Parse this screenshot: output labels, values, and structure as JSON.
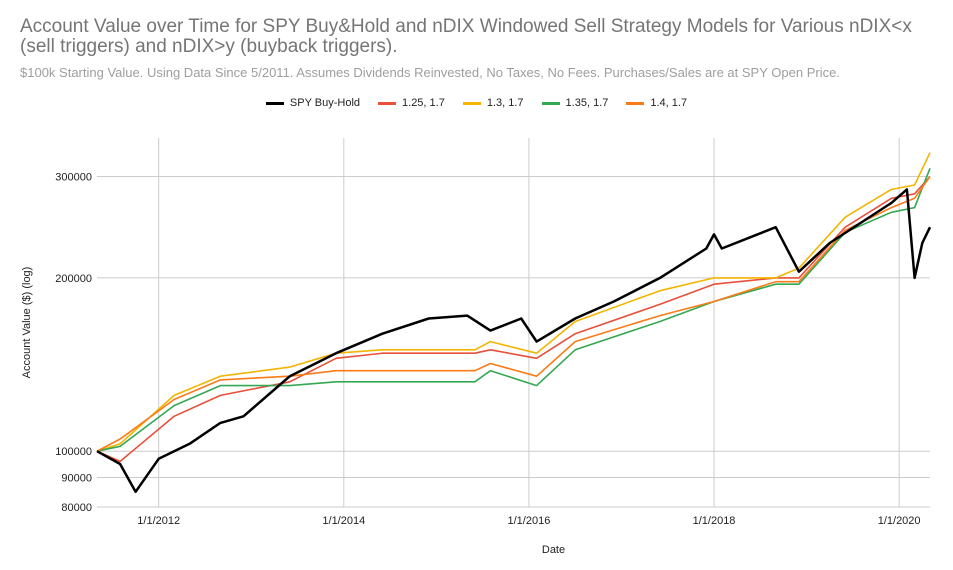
{
  "chart_data": {
    "type": "line",
    "title": "Account Value over Time for SPY Buy&Hold and nDIX Windowed Sell Strategy Models for Various nDIX<x (sell triggers) and nDIX>y (buyback triggers).",
    "subtitle": "$100k Starting Value. Using Data Since 5/2011. Assumes Dividends Reinvested, No Taxes, No Fees. Purchases/Sales are at SPY Open Price.",
    "xlabel": "Date",
    "ylabel": "Account Value ($) (log)",
    "y_scale": "log",
    "ylim": [
      80000,
      350000
    ],
    "xlim": [
      "2011-05",
      "2020-05"
    ],
    "x_ticks": [
      "1/1/2012",
      "1/1/2014",
      "1/1/2016",
      "1/1/2018",
      "1/1/2020"
    ],
    "y_ticks": [
      {
        "value": 80000,
        "label": "80000"
      },
      {
        "value": 90000,
        "label": "90000"
      },
      {
        "value": 100000,
        "label": "100000"
      },
      {
        "value": 200000,
        "label": "200000"
      },
      {
        "value": 300000,
        "label": "300000"
      }
    ],
    "legend_position": "top",
    "grid": true,
    "series": [
      {
        "name": "SPY Buy-Hold",
        "color": "#000000",
        "x": [
          "2011-05",
          "2011-08",
          "2011-10",
          "2012-01",
          "2012-05",
          "2012-09",
          "2012-12",
          "2013-06",
          "2013-12",
          "2014-06",
          "2014-12",
          "2015-05",
          "2015-08",
          "2015-12",
          "2016-02",
          "2016-07",
          "2016-12",
          "2017-06",
          "2017-12",
          "2018-01",
          "2018-02",
          "2018-09",
          "2018-12",
          "2019-04",
          "2019-12",
          "2020-02",
          "2020-03",
          "2020-04",
          "2020-05"
        ],
        "values": [
          100000,
          95000,
          85000,
          97000,
          103000,
          112000,
          115000,
          135000,
          148000,
          160000,
          170000,
          172000,
          162000,
          170000,
          155000,
          170000,
          182000,
          200000,
          225000,
          238000,
          225000,
          245000,
          205000,
          230000,
          270000,
          285000,
          200000,
          230000,
          245000
        ]
      },
      {
        "name": "1.25, 1.7",
        "color": "#e8503a",
        "x": [
          "2011-05",
          "2011-08",
          "2012-03",
          "2012-09",
          "2013-06",
          "2013-12",
          "2014-06",
          "2015-06",
          "2015-08",
          "2016-02",
          "2016-07",
          "2017-06",
          "2018-01",
          "2018-09",
          "2018-12",
          "2019-06",
          "2019-12",
          "2020-03",
          "2020-05"
        ],
        "values": [
          100000,
          96000,
          115000,
          125000,
          132000,
          145000,
          148000,
          148000,
          150000,
          145000,
          160000,
          180000,
          195000,
          200000,
          200000,
          245000,
          275000,
          280000,
          300000
        ]
      },
      {
        "name": "1.3, 1.7",
        "color": "#f4b400",
        "x": [
          "2011-05",
          "2011-08",
          "2012-03",
          "2012-09",
          "2013-06",
          "2013-12",
          "2014-06",
          "2015-06",
          "2015-08",
          "2016-02",
          "2016-07",
          "2017-06",
          "2018-01",
          "2018-09",
          "2018-12",
          "2019-06",
          "2019-12",
          "2020-03",
          "2020-05"
        ],
        "values": [
          100000,
          103000,
          125000,
          135000,
          140000,
          148000,
          150000,
          150000,
          155000,
          148000,
          168000,
          190000,
          200000,
          200000,
          208000,
          255000,
          285000,
          290000,
          330000
        ]
      },
      {
        "name": "1.35, 1.7",
        "color": "#34a853",
        "x": [
          "2011-05",
          "2011-08",
          "2012-03",
          "2012-09",
          "2013-06",
          "2013-12",
          "2014-06",
          "2015-06",
          "2015-08",
          "2016-02",
          "2016-07",
          "2017-06",
          "2018-01",
          "2018-09",
          "2018-12",
          "2019-06",
          "2019-12",
          "2020-03",
          "2020-05"
        ],
        "values": [
          100000,
          102000,
          120000,
          130000,
          130000,
          132000,
          132000,
          132000,
          138000,
          130000,
          150000,
          168000,
          182000,
          195000,
          195000,
          240000,
          260000,
          265000,
          310000
        ]
      },
      {
        "name": "1.4, 1.7",
        "color": "#fa7b17",
        "x": [
          "2011-05",
          "2011-08",
          "2012-03",
          "2012-09",
          "2013-06",
          "2013-12",
          "2014-06",
          "2015-06",
          "2015-08",
          "2016-02",
          "2016-07",
          "2017-06",
          "2018-01",
          "2018-09",
          "2018-12",
          "2019-06",
          "2019-12",
          "2020-03",
          "2020-05"
        ],
        "values": [
          100000,
          105000,
          123000,
          133000,
          135000,
          138000,
          138000,
          138000,
          142000,
          135000,
          155000,
          172000,
          182000,
          197000,
          197000,
          242000,
          265000,
          275000,
          300000
        ]
      }
    ]
  }
}
